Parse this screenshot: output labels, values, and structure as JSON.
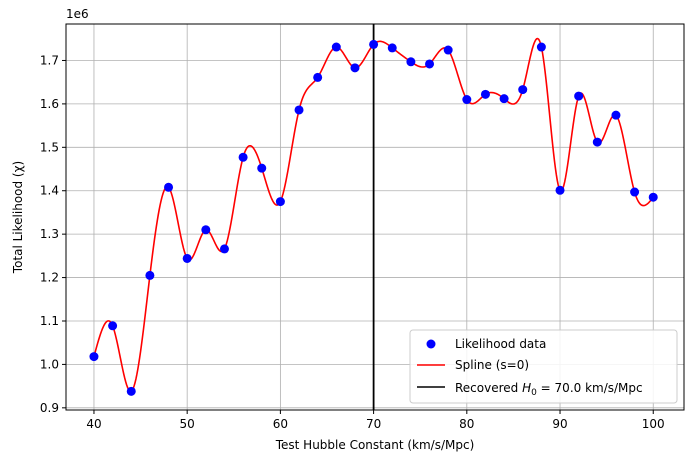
{
  "chart_data": {
    "type": "scatter",
    "title": "",
    "xlabel": "Test Hubble Constant (km/s/Mpc)",
    "ylabel": "Total Likelihood (χ)",
    "y_offset_label": "1e6",
    "xlim": [
      37,
      103.3
    ],
    "ylim": [
      0.895,
      1.784
    ],
    "x_ticks": [
      40,
      50,
      60,
      70,
      80,
      90,
      100
    ],
    "y_ticks": [
      0.9,
      1.0,
      1.1,
      1.2,
      1.3,
      1.4,
      1.5,
      1.6,
      1.7
    ],
    "y_tick_labels": [
      "0.9",
      "1.0",
      "1.1",
      "1.2",
      "1.3",
      "1.4",
      "1.5",
      "1.6",
      "1.7"
    ],
    "x_tick_labels": [
      "40",
      "50",
      "60",
      "70",
      "80",
      "90",
      "100"
    ],
    "grid": true,
    "legend_position": "lower-right",
    "series": [
      {
        "name": "Likelihood data",
        "kind": "scatter",
        "color": "#0000ff",
        "x": [
          40,
          42,
          44,
          46,
          48,
          50,
          52,
          54,
          56,
          58,
          60,
          62,
          64,
          66,
          68,
          70,
          72,
          74,
          76,
          78,
          80,
          82,
          84,
          86,
          88,
          90,
          92,
          94,
          96,
          98,
          100
        ],
        "y": [
          1.018,
          1.089,
          0.938,
          1.205,
          1.408,
          1.244,
          1.31,
          1.266,
          1.477,
          1.452,
          1.375,
          1.586,
          1.661,
          1.731,
          1.683,
          1.737,
          1.729,
          1.697,
          1.692,
          1.724,
          1.61,
          1.622,
          1.612,
          1.633,
          1.731,
          1.401,
          1.618,
          1.512,
          1.574,
          1.397,
          1.385
        ]
      },
      {
        "name": "Spline (s=0)",
        "kind": "spline",
        "color": "#ff0000"
      },
      {
        "name_prefix": "Recovered ",
        "name_symbol": "H",
        "name_subscript": "0",
        "name_suffix": " = 70.0 km/s/Mpc",
        "kind": "vline",
        "color": "#000000",
        "x": 70.0
      }
    ]
  }
}
